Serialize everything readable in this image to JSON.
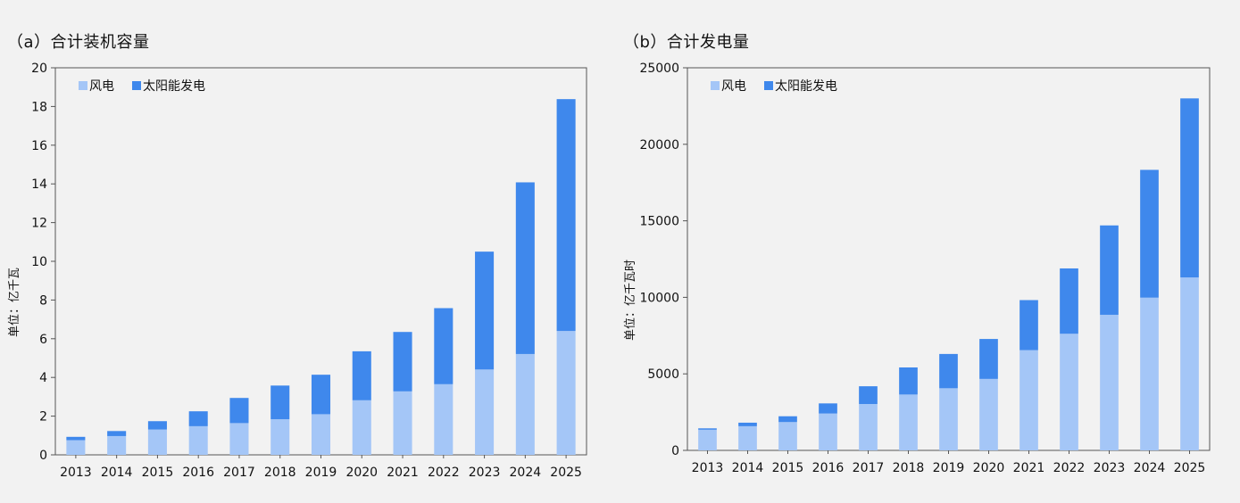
{
  "colors": {
    "wind": "#a4c6f7",
    "solar": "#3f88ec",
    "axis": "#555555",
    "background": "#f2f2f2"
  },
  "chart_data": [
    {
      "type": "bar",
      "stacked": true,
      "title": "（a）合计装机容量",
      "ylabel": "单位：亿千瓦",
      "categories": [
        "2013",
        "2014",
        "2015",
        "2016",
        "2017",
        "2018",
        "2019",
        "2020",
        "2021",
        "2022",
        "2023",
        "2024",
        "2025"
      ],
      "series": [
        {
          "name": "风电",
          "color": "#a4c6f7",
          "values": [
            0.76,
            0.97,
            1.31,
            1.48,
            1.64,
            1.84,
            2.1,
            2.82,
            3.28,
            3.65,
            4.41,
            5.21,
            6.4
          ]
        },
        {
          "name": "太阳能发电",
          "color": "#3f88ec",
          "values": [
            0.17,
            0.26,
            0.43,
            0.77,
            1.3,
            1.74,
            2.04,
            2.53,
            3.07,
            3.93,
            6.09,
            8.87,
            11.98
          ]
        }
      ],
      "ylim": [
        0,
        20
      ],
      "yticks": [
        0,
        2,
        4,
        6,
        8,
        10,
        12,
        14,
        16,
        18,
        20
      ],
      "grid": false,
      "legend": "top-left"
    },
    {
      "type": "bar",
      "stacked": true,
      "title": "（b）合计发电量",
      "ylabel": "单位：亿千瓦时",
      "categories": [
        "2013",
        "2014",
        "2015",
        "2016",
        "2017",
        "2018",
        "2019",
        "2020",
        "2021",
        "2022",
        "2023",
        "2024",
        "2025"
      ],
      "series": [
        {
          "name": "风电",
          "color": "#a4c6f7",
          "values": [
            1350,
            1580,
            1850,
            2410,
            3030,
            3650,
            4060,
            4670,
            6550,
            7620,
            8860,
            9980,
            11300
          ]
        },
        {
          "name": "太阳能发电",
          "color": "#3f88ec",
          "values": [
            90,
            230,
            380,
            660,
            1160,
            1770,
            2240,
            2610,
            3270,
            4270,
            5840,
            8350,
            11700
          ]
        }
      ],
      "ylim": [
        0,
        25000
      ],
      "yticks": [
        0,
        5000,
        10000,
        15000,
        20000,
        25000
      ],
      "grid": false,
      "legend": "top-left"
    }
  ]
}
